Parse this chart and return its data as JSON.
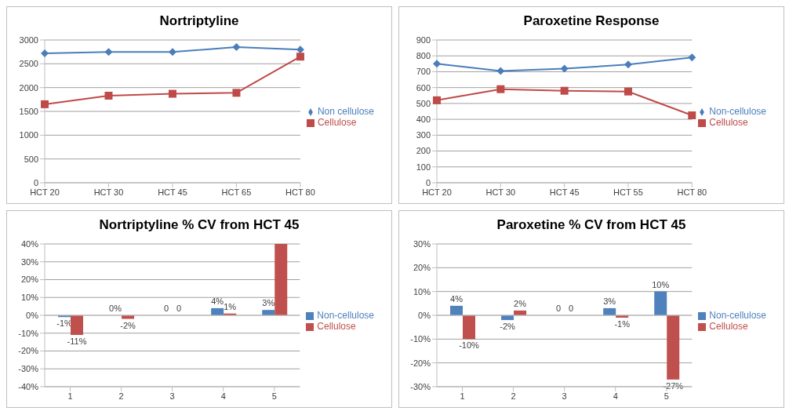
{
  "chart_data": [
    {
      "type": "line",
      "title": "Nortriptyline",
      "categories": [
        "HCT 20",
        "HCT 30",
        "HCT 45",
        "HCT 65",
        "HCT 80"
      ],
      "ylim": [
        0,
        3000
      ],
      "yticks": [
        0,
        500,
        1000,
        1500,
        2000,
        2500,
        3000
      ],
      "grid": "y",
      "legend": "right",
      "series": [
        {
          "name": "Non cellulose",
          "color": "#4a7ebb",
          "marker": "diamond",
          "values": [
            2720,
            2750,
            2750,
            2850,
            2800
          ]
        },
        {
          "name": "Cellulose",
          "color": "#be4b48",
          "marker": "square",
          "values": [
            1650,
            1830,
            1870,
            1890,
            2650
          ]
        }
      ]
    },
    {
      "type": "line",
      "title": "Paroxetine Response",
      "categories": [
        "HCT 20",
        "HCT 30",
        "HCT 45",
        "HCT 55",
        "HCT 80"
      ],
      "ylim": [
        0,
        900
      ],
      "yticks": [
        0,
        100,
        200,
        300,
        400,
        500,
        600,
        700,
        800,
        900
      ],
      "grid": "y",
      "legend": "right",
      "series": [
        {
          "name": "Non-cellulose",
          "color": "#4a7ebb",
          "marker": "diamond",
          "values": [
            750,
            705,
            720,
            745,
            790
          ]
        },
        {
          "name": "Cellulose",
          "color": "#be4b48",
          "marker": "square",
          "values": [
            520,
            590,
            580,
            575,
            425
          ]
        }
      ]
    },
    {
      "type": "bar",
      "title": "Nortriptyline % CV from HCT 45",
      "categories": [
        "1",
        "2",
        "3",
        "4",
        "5"
      ],
      "ylim": [
        -40,
        40
      ],
      "yticks": [
        {
          "value": -40,
          "label": "-40%"
        },
        {
          "value": -30,
          "label": "-30%"
        },
        {
          "value": -20,
          "label": "-20%"
        },
        {
          "value": -10,
          "label": "-10%"
        },
        {
          "value": 0,
          "label": "0%"
        },
        {
          "value": 10,
          "label": "10%"
        },
        {
          "value": 20,
          "label": "20%"
        },
        {
          "value": 30,
          "label": "30%"
        },
        {
          "value": 40,
          "label": "40%"
        }
      ],
      "grid": "y",
      "legend": "right",
      "series": [
        {
          "name": "Non-cellulose",
          "color": "#4f81bd",
          "values": [
            -1,
            0,
            0,
            4,
            3
          ],
          "value_labels": [
            "-1%",
            "0%",
            "0",
            "4%",
            "3%"
          ]
        },
        {
          "name": "Cellulose",
          "color": "#c0504d",
          "values": [
            -11,
            -2,
            0,
            1,
            40
          ],
          "value_labels": [
            "-11%",
            "-2%",
            "0",
            "1%",
            null
          ]
        }
      ]
    },
    {
      "type": "bar",
      "title": "Paroxetine % CV from HCT 45",
      "categories": [
        "1",
        "2",
        "3",
        "4",
        "5"
      ],
      "ylim": [
        -30,
        30
      ],
      "yticks": [
        {
          "value": -30,
          "label": "-30%"
        },
        {
          "value": -20,
          "label": "-20%"
        },
        {
          "value": -10,
          "label": "-10%"
        },
        {
          "value": 0,
          "label": "0%"
        },
        {
          "value": 10,
          "label": "10%"
        },
        {
          "value": 20,
          "label": "20%"
        },
        {
          "value": 30,
          "label": "30%"
        }
      ],
      "grid": "y",
      "legend": "right",
      "series": [
        {
          "name": "Non-cellulose",
          "color": "#4f81bd",
          "values": [
            4,
            -2,
            0,
            3,
            10
          ],
          "value_labels": [
            "4%",
            "-2%",
            "0",
            "3%",
            "10%"
          ]
        },
        {
          "name": "Cellulose",
          "color": "#c0504d",
          "values": [
            -10,
            2,
            0,
            -1,
            -27
          ],
          "value_labels": [
            "-10%",
            "2%",
            "0",
            "-1%",
            "-27%"
          ]
        }
      ]
    }
  ]
}
